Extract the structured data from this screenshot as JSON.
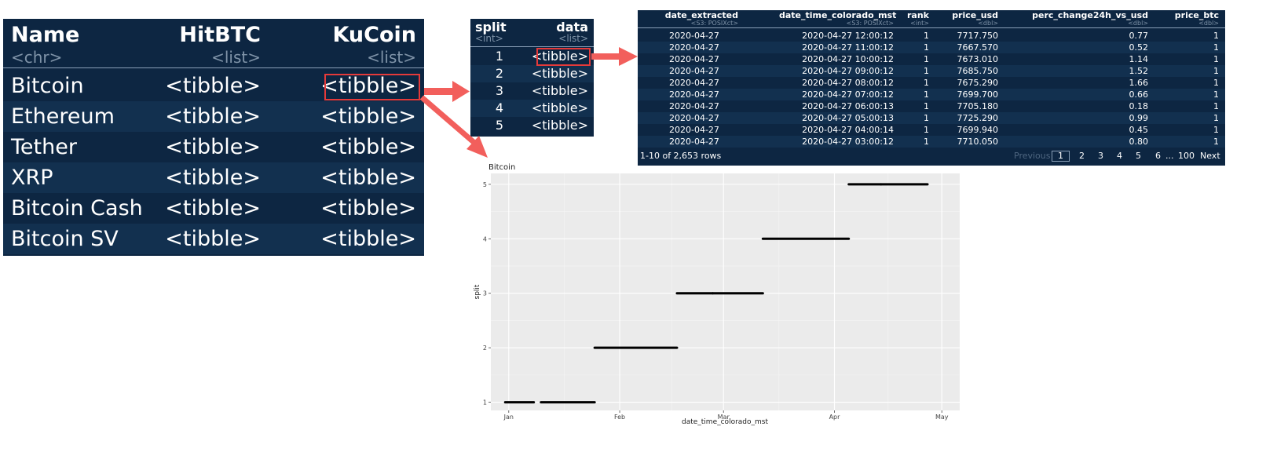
{
  "table1": {
    "columns": [
      {
        "name": "Name",
        "type": "<chr>"
      },
      {
        "name": "HitBTC",
        "type": "<list>"
      },
      {
        "name": "KuCoin",
        "type": "<list>"
      }
    ],
    "rows": [
      {
        "name": "Bitcoin",
        "hitbtc": "<tibble>",
        "kucoin": "<tibble>"
      },
      {
        "name": "Ethereum",
        "hitbtc": "<tibble>",
        "kucoin": "<tibble>"
      },
      {
        "name": "Tether",
        "hitbtc": "<tibble>",
        "kucoin": "<tibble>"
      },
      {
        "name": "XRP",
        "hitbtc": "<tibble>",
        "kucoin": "<tibble>"
      },
      {
        "name": "Bitcoin Cash",
        "hitbtc": "<tibble>",
        "kucoin": "<tibble>"
      },
      {
        "name": "Bitcoin SV",
        "hitbtc": "<tibble>",
        "kucoin": "<tibble>"
      }
    ]
  },
  "table2": {
    "columns": [
      {
        "name": "split",
        "type": "<int>"
      },
      {
        "name": "data",
        "type": "<list>"
      }
    ],
    "rows": [
      {
        "split": "1",
        "data": "<tibble>"
      },
      {
        "split": "2",
        "data": "<tibble>"
      },
      {
        "split": "3",
        "data": "<tibble>"
      },
      {
        "split": "4",
        "data": "<tibble>"
      },
      {
        "split": "5",
        "data": "<tibble>"
      }
    ]
  },
  "table3": {
    "columns": [
      {
        "name": "date_extracted",
        "type": "<S3: POSIXct>"
      },
      {
        "name": "date_time_colorado_mst",
        "type": "<S3: POSIXct>"
      },
      {
        "name": "rank",
        "type": "<int>"
      },
      {
        "name": "price_usd",
        "type": "<dbl>"
      },
      {
        "name": "perc_change24h_vs_usd",
        "type": "<dbl>"
      },
      {
        "name": "price_btc",
        "type": "<dbl>"
      }
    ],
    "rows": [
      [
        "2020-04-27",
        "2020-04-27 12:00:12",
        "1",
        "7717.750",
        "0.77",
        "1"
      ],
      [
        "2020-04-27",
        "2020-04-27 11:00:12",
        "1",
        "7667.570",
        "0.52",
        "1"
      ],
      [
        "2020-04-27",
        "2020-04-27 10:00:12",
        "1",
        "7673.010",
        "1.14",
        "1"
      ],
      [
        "2020-04-27",
        "2020-04-27 09:00:12",
        "1",
        "7685.750",
        "1.52",
        "1"
      ],
      [
        "2020-04-27",
        "2020-04-27 08:00:12",
        "1",
        "7675.290",
        "1.66",
        "1"
      ],
      [
        "2020-04-27",
        "2020-04-27 07:00:12",
        "1",
        "7699.700",
        "0.66",
        "1"
      ],
      [
        "2020-04-27",
        "2020-04-27 06:00:13",
        "1",
        "7705.180",
        "0.18",
        "1"
      ],
      [
        "2020-04-27",
        "2020-04-27 05:00:13",
        "1",
        "7725.290",
        "0.99",
        "1"
      ],
      [
        "2020-04-27",
        "2020-04-27 04:00:14",
        "1",
        "7699.940",
        "0.45",
        "1"
      ],
      [
        "2020-04-27",
        "2020-04-27 03:00:12",
        "1",
        "7710.050",
        "0.80",
        "1"
      ]
    ],
    "footer": {
      "row_info": "1-10 of 2,653 rows",
      "previous": "Previous",
      "pages": [
        "1",
        "2",
        "3",
        "4",
        "5",
        "6"
      ],
      "ellipsis": "...",
      "last_page": "100",
      "next": "Next"
    }
  },
  "chart_data": {
    "type": "scatter",
    "title": "Bitcoin",
    "xlabel": "date_time_colorado_mst",
    "ylabel": "split",
    "x_ticks": [
      "Jan",
      "Feb",
      "Mar",
      "Apr",
      "May"
    ],
    "x_tick_dates": [
      "2020-01-01",
      "2020-02-01",
      "2020-03-01",
      "2020-04-01",
      "2020-05-01"
    ],
    "y_ticks": [
      "1",
      "2",
      "3",
      "4",
      "5"
    ],
    "xlim": [
      "2019-12-27",
      "2020-05-06"
    ],
    "ylim": [
      0.85,
      5.2
    ],
    "grid": true,
    "series": [
      {
        "split": 1,
        "segments": [
          [
            "2019-12-31",
            "2020-01-08"
          ],
          [
            "2020-01-10",
            "2020-01-25"
          ]
        ]
      },
      {
        "split": 2,
        "segments": [
          [
            "2020-01-25",
            "2020-02-17"
          ]
        ]
      },
      {
        "split": 3,
        "segments": [
          [
            "2020-02-17",
            "2020-02-27"
          ],
          [
            "2020-02-27",
            "2020-03-12"
          ]
        ]
      },
      {
        "split": 4,
        "segments": [
          [
            "2020-03-12",
            "2020-04-05"
          ]
        ]
      },
      {
        "split": 5,
        "segments": [
          [
            "2020-04-05",
            "2020-04-14"
          ],
          [
            "2020-04-14",
            "2020-04-27"
          ]
        ]
      }
    ]
  },
  "colors": {
    "panel_bg": "#0d2642",
    "panel_alt_row": "#12304f",
    "text": "#ffffff",
    "type_text": "#7f93a8",
    "highlight": "#e53a3a",
    "arrow": "#f25f5c",
    "chart_bg": "#ebebeb",
    "chart_grid": "#ffffff",
    "segment": "#000000"
  }
}
